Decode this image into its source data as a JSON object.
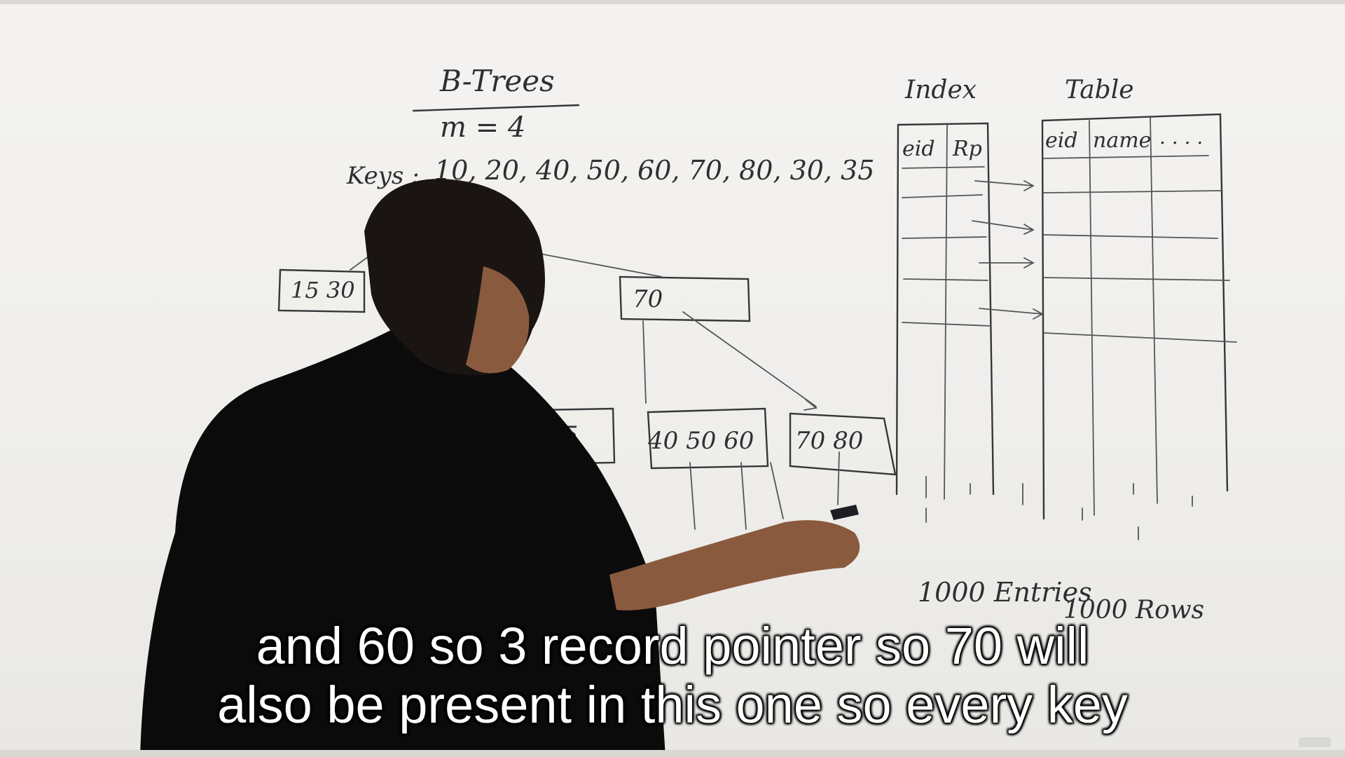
{
  "board": {
    "title": "B-Trees",
    "order": "m = 4",
    "keys_label": "Keys :",
    "keys": "10, 20, 40, 50, 60, 70, 80, 30, 35",
    "root_node": "70",
    "left_node": "15  30",
    "leaf_a": "35",
    "leaf_b": "40  50  60",
    "leaf_c": "70  80",
    "index_heading": "Index",
    "index_columns": [
      "eid",
      "Rp"
    ],
    "table_heading": "Table",
    "table_columns": [
      "eid",
      "name",
      ". . . ."
    ],
    "index_count": "1000 Entries",
    "table_count": "1000 Rows"
  },
  "subtitle": {
    "line1": "and 60 so 3 record pointer so 70 will",
    "line2": "also be present in this one so every key"
  }
}
